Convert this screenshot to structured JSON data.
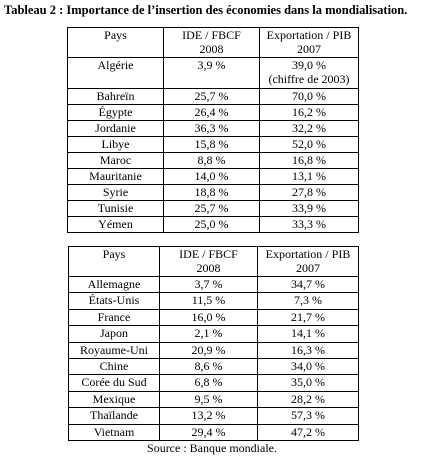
{
  "title": "Tableau 2 : Importance de l’insertion des économies dans la mondialisation.",
  "tables": [
    {
      "header": [
        [
          "Pays"
        ],
        [
          "IDE / FBCF",
          "2008"
        ],
        [
          "Exportation / PIB",
          "2007"
        ]
      ],
      "rows": [
        [
          "Algérie",
          "3,9 %",
          [
            "39,0 %",
            "(chiffre de 2003)"
          ]
        ],
        [
          "Bahreïn",
          "25,7 %",
          "70,0 %"
        ],
        [
          "Égypte",
          "26,4 %",
          "16,2 %"
        ],
        [
          "Jordanie",
          "36,3 %",
          "32,2 %"
        ],
        [
          "Libye",
          "15,8 %",
          "52,0 %"
        ],
        [
          "Maroc",
          "8,8 %",
          "16,8 %"
        ],
        [
          "Mauritanie",
          "14,0 %",
          "13,1 %"
        ],
        [
          "Syrie",
          "18,8 %",
          "27,8 %"
        ],
        [
          "Tunisie",
          "25,7 %",
          "33,9 %"
        ],
        [
          "Yémen",
          "25,0 %",
          "33,3 %"
        ]
      ]
    },
    {
      "header": [
        [
          "Pays"
        ],
        [
          "IDE / FBCF",
          "2008"
        ],
        [
          "Exportation / PIB",
          "2007"
        ]
      ],
      "rows": [
        [
          "Allemagne",
          "3,7 %",
          "34,7 %"
        ],
        [
          "États-Unis",
          "11,5 %",
          "7,3 %"
        ],
        [
          "France",
          "16,0 %",
          "21,7 %"
        ],
        [
          "Japon",
          "2,1 %",
          "14,1 %"
        ],
        [
          "Royaume-Uni",
          "20,9 %",
          "16,3 %"
        ],
        [
          "Chine",
          "8,6 %",
          "34,0 %"
        ],
        [
          "Corée du Sud",
          "6,8 %",
          "35,0 %"
        ],
        [
          "Mexique",
          "9,5 %",
          "28,2 %"
        ],
        [
          "Thaïlande",
          "13,2 %",
          "57,3 %"
        ],
        [
          "Vietnam",
          "29,4 %",
          "47,2 %"
        ]
      ]
    }
  ],
  "source": "Source : Banque mondiale."
}
